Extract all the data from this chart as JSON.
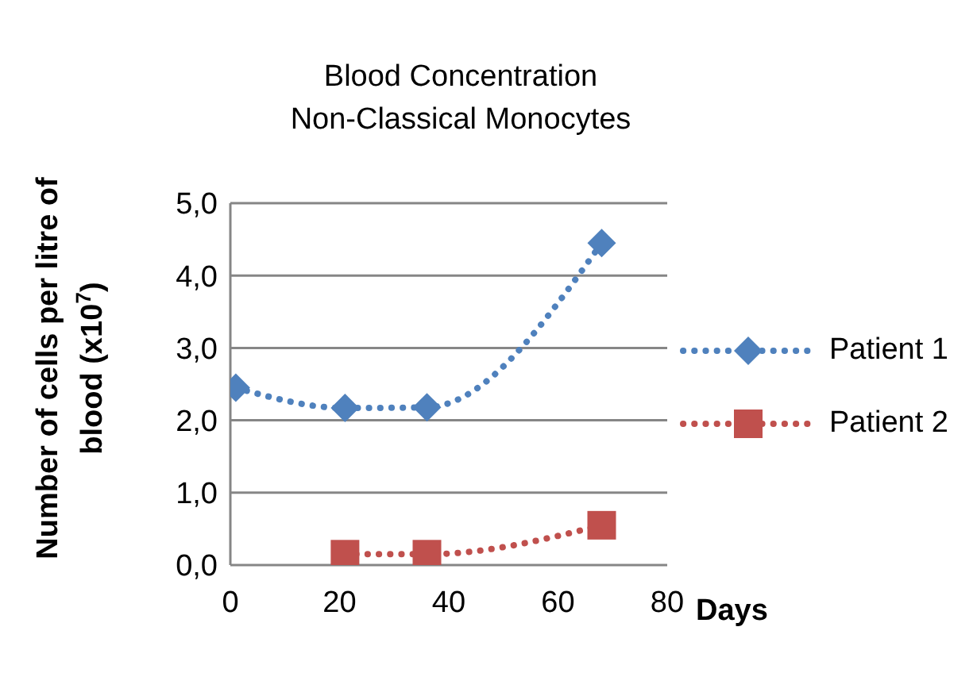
{
  "chart_data": {
    "type": "line",
    "title": "Blood Concentration\nNon-Classical Monocytes",
    "xlabel": "Days",
    "ylabel": "Number of cells per litre of blood (x10$^{7}$)",
    "xlim": [
      0,
      80
    ],
    "xticks": [
      0,
      20,
      40,
      60,
      80
    ],
    "ylim": [
      0,
      5
    ],
    "yticks": [
      {
        "value": 0,
        "label": "0,0"
      },
      {
        "value": 1,
        "label": "1,0"
      },
      {
        "value": 2,
        "label": "2,0"
      },
      {
        "value": 3,
        "label": "3,0"
      },
      {
        "value": 4,
        "label": "4,0"
      },
      {
        "value": 5,
        "label": "5,0"
      }
    ],
    "grid": "y",
    "legend": "right",
    "line_style": "dotted",
    "series": [
      {
        "name": "Patient 1",
        "color": "#4f81bd",
        "marker": "diamond",
        "x": [
          1,
          21,
          36,
          68
        ],
        "values": [
          2.45,
          2.17,
          2.18,
          4.45
        ]
      },
      {
        "name": "Patient 2",
        "color": "#c0504d",
        "marker": "square",
        "x": [
          21,
          36,
          68
        ],
        "values": [
          0.15,
          0.15,
          0.55
        ]
      }
    ]
  }
}
